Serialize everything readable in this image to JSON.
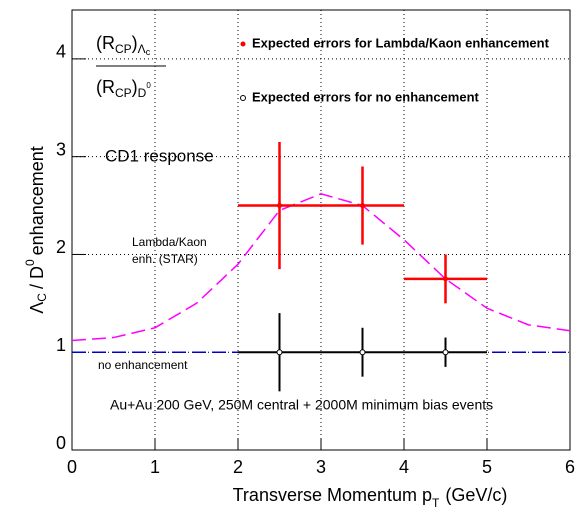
{
  "chart_data": {
    "type": "errorbar",
    "formula": {
      "numerator": [
        "(R",
        "CP",
        ")",
        "Λ",
        "c"
      ],
      "denominator": [
        "(R",
        "CP",
        ")",
        "D",
        "0"
      ]
    },
    "x_label": [
      "Transverse Momentum p",
      "T",
      "(GeV/c)"
    ],
    "y_label": [
      "Λ",
      "C",
      "/ D",
      "0",
      "enhancement"
    ],
    "xlim": [
      0,
      6
    ],
    "ylim": [
      0,
      4.5
    ],
    "xticks": [
      0,
      1,
      2,
      3,
      4,
      5,
      6
    ],
    "yticks": [
      0,
      1,
      2,
      3,
      4
    ],
    "grid": true,
    "series": [
      {
        "name": "Expected errors for Lambda/Kaon enhancement",
        "color": "#ff0000",
        "marker": "filled",
        "x": [
          2.5,
          3.5,
          4.5
        ],
        "values": [
          2.5,
          2.5,
          1.75
        ],
        "xerr": [
          0.5,
          0.5,
          0.5
        ],
        "yerr": [
          0.65,
          0.4,
          0.25
        ]
      },
      {
        "name": "Expected errors for no enhancement",
        "color": "#000000",
        "marker": "open",
        "x": [
          2.5,
          3.5,
          4.5
        ],
        "values": [
          1,
          1,
          1
        ],
        "xerr": [
          0.5,
          0.5,
          0.5
        ],
        "yerr": [
          0.4,
          0.25,
          0.15
        ]
      }
    ],
    "curves": [
      {
        "color": "#ff00ff",
        "x": [
          0,
          0.5,
          1,
          1.5,
          2,
          2.5,
          3,
          3.5,
          4,
          4.5,
          5,
          5.5,
          6
        ],
        "values": [
          1.12,
          1.15,
          1.25,
          1.5,
          1.9,
          2.45,
          2.62,
          2.5,
          2.15,
          1.75,
          1.45,
          1.28,
          1.22
        ]
      },
      {
        "color": "#0000cc",
        "x": [
          0,
          6
        ],
        "values": [
          1,
          1
        ]
      }
    ],
    "annotations": [
      "CD1 response",
      "Lambda/Kaon",
      "enh. (STAR)",
      "no enhancement",
      "Au+Au 200 GeV, 250M central + 2000M minimum bias events"
    ]
  }
}
